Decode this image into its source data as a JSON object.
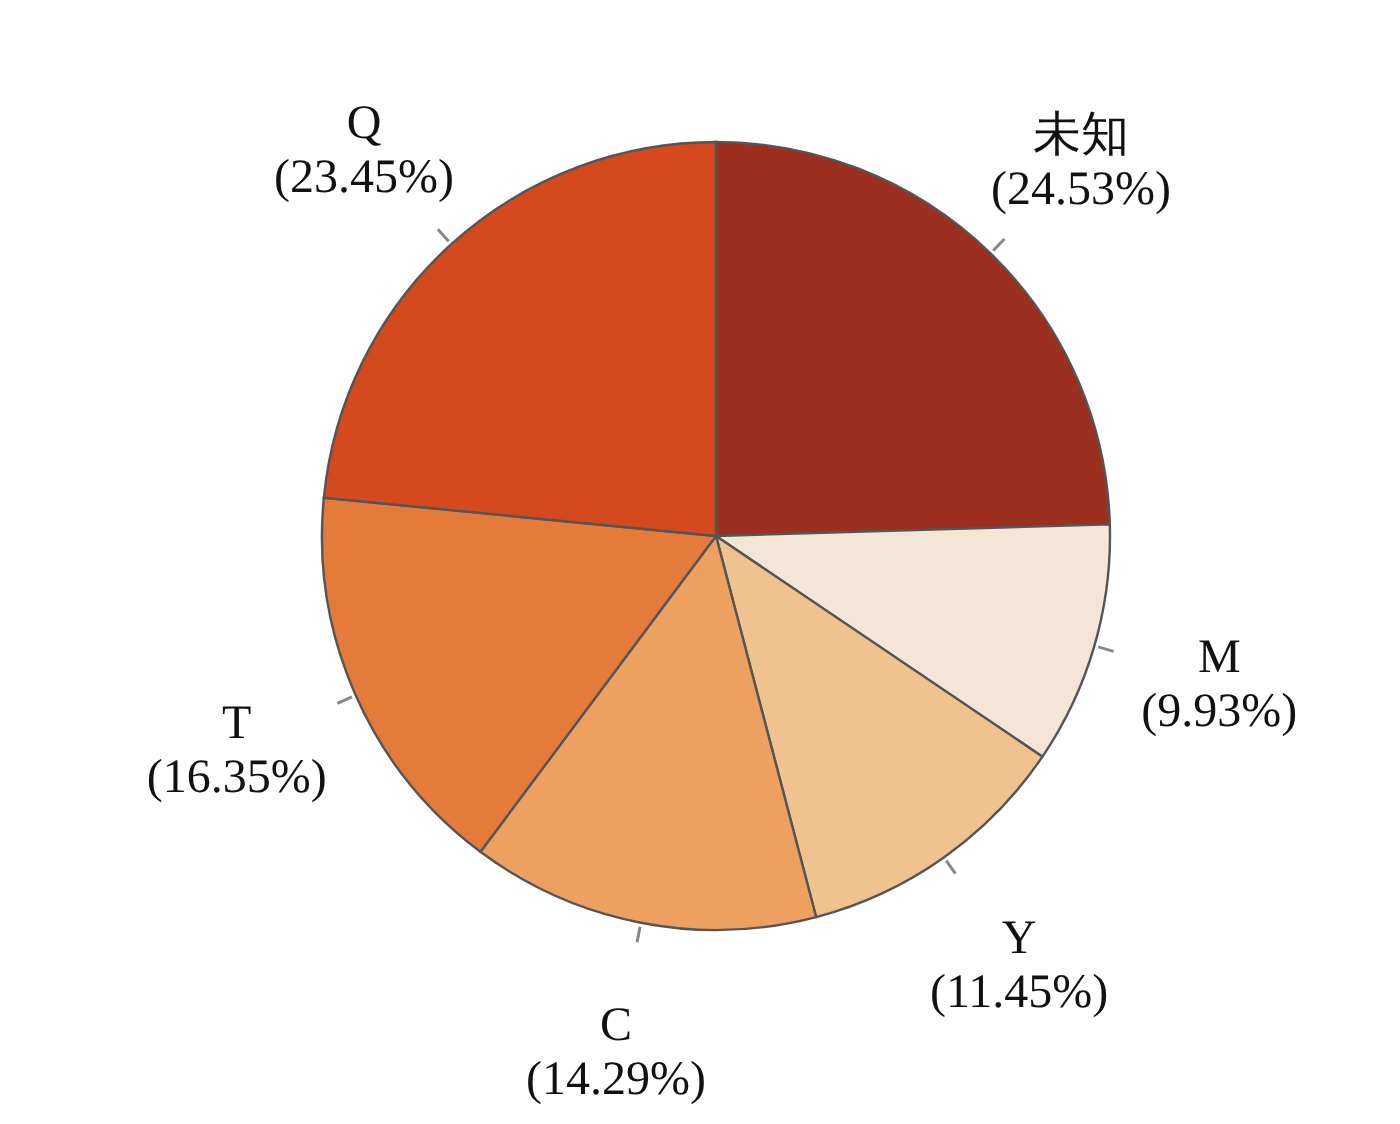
{
  "chart_data": {
    "type": "pie",
    "categories": [
      "未知",
      "M",
      "Y",
      "C",
      "T",
      "Q"
    ],
    "values": [
      24.53,
      9.93,
      11.45,
      14.29,
      16.35,
      23.45
    ],
    "colors": [
      "#9c2f1f",
      "#f3e6d6",
      "#efc290",
      "#eea060",
      "#e57b3b",
      "#d4491e"
    ],
    "value_labels": [
      "(24.53%)",
      "(9.93%)",
      "(11.45%)",
      "(14.29%)",
      "(16.35%)",
      "(23.45%)"
    ]
  }
}
